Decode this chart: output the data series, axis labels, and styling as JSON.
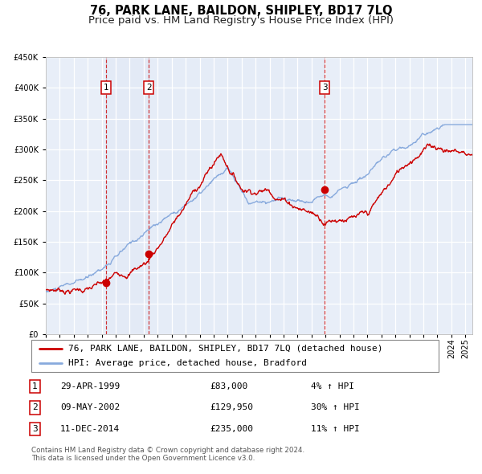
{
  "title": "76, PARK LANE, BAILDON, SHIPLEY, BD17 7LQ",
  "subtitle": "Price paid vs. HM Land Registry's House Price Index (HPI)",
  "ylim": [
    0,
    450000
  ],
  "yticks": [
    0,
    50000,
    100000,
    150000,
    200000,
    250000,
    300000,
    350000,
    400000,
    450000
  ],
  "xlim_start": 1995.0,
  "xlim_end": 2025.5,
  "background_color": "#ffffff",
  "plot_bg_color": "#e8eef8",
  "grid_color": "#ffffff",
  "sale_color": "#cc0000",
  "hpi_color": "#88aadd",
  "transactions": [
    {
      "num": 1,
      "date_str": "29-APR-1999",
      "year": 1999.32,
      "price": 83000,
      "pct": "4%",
      "direction": "↑"
    },
    {
      "num": 2,
      "date_str": "09-MAY-2002",
      "year": 2002.36,
      "price": 129950,
      "pct": "30%",
      "direction": "↑"
    },
    {
      "num": 3,
      "date_str": "11-DEC-2014",
      "year": 2014.94,
      "price": 235000,
      "pct": "11%",
      "direction": "↑"
    }
  ],
  "legend_label_sale": "76, PARK LANE, BAILDON, SHIPLEY, BD17 7LQ (detached house)",
  "legend_label_hpi": "HPI: Average price, detached house, Bradford",
  "footnote": "Contains HM Land Registry data © Crown copyright and database right 2024.\nThis data is licensed under the Open Government Licence v3.0.",
  "title_fontsize": 10.5,
  "subtitle_fontsize": 9.5,
  "tick_fontsize": 7,
  "label_fontsize": 8,
  "legend_fontsize": 8
}
